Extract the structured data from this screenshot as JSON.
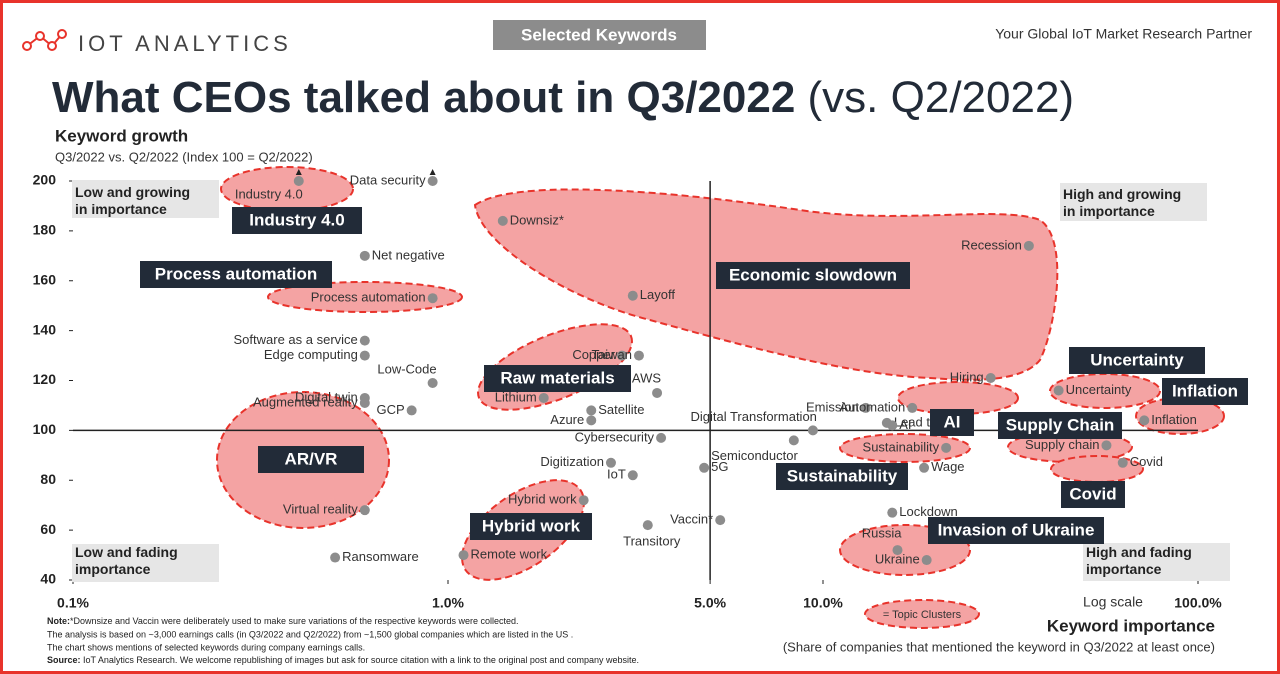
{
  "header": {
    "logo": "IOT ANALYTICS",
    "badge": "Selected Keywords",
    "tagline": "Your Global IoT Market Research Partner"
  },
  "chart_data": {
    "type": "scatter",
    "title": "What CEOs talked about in Q3/2022",
    "title_suffix": "(vs. Q2/2022)",
    "y_title": "Keyword growth",
    "y_subtitle": "Q3/2022 vs. Q2/2022 (Index 100 = Q2/2022)",
    "x_title": "Keyword importance",
    "x_subtitle": "(Share of companies that mentioned the keyword in Q3/2022 at least once)",
    "x_scale_label": "Log scale",
    "log_x": true,
    "xlim": [
      0.1,
      100
    ],
    "ylim": [
      40,
      200
    ],
    "xticks": [
      {
        "value": 0.1,
        "label": "0.1%"
      },
      {
        "value": 1,
        "label": "1.0%"
      },
      {
        "value": 5,
        "label": "5.0%"
      },
      {
        "value": 10,
        "label": "10.0%"
      },
      {
        "value": 100,
        "label": "100.0%"
      }
    ],
    "yticks": [
      40,
      60,
      80,
      100,
      120,
      140,
      160,
      180,
      200
    ],
    "reference_lines": {
      "x": 5,
      "y": 100
    },
    "color": "#8c8c8c",
    "cluster_color": "#f4a3a3",
    "quadrants": [
      "Low and growing in importance",
      "High and growing in importance",
      "Low and fading importance",
      "High and fading importance"
    ],
    "points": [
      {
        "label": "Industry 4.0",
        "x": 0.4,
        "y": 200
      },
      {
        "label": "Data security",
        "x": 0.91,
        "y": 200
      },
      {
        "label": "Downsiz*",
        "x": 1.4,
        "y": 184
      },
      {
        "label": "Net negative",
        "x": 0.6,
        "y": 170
      },
      {
        "label": "Process automation",
        "x": 0.91,
        "y": 153
      },
      {
        "label": "Layoff",
        "x": 3.11,
        "y": 154
      },
      {
        "label": "Recession",
        "x": 35.4,
        "y": 174
      },
      {
        "label": "Software as a service",
        "x": 0.6,
        "y": 136
      },
      {
        "label": "Edge computing",
        "x": 0.6,
        "y": 130
      },
      {
        "label": "Copper",
        "x": 2.91,
        "y": 130
      },
      {
        "label": "Taiwan",
        "x": 3.23,
        "y": 130
      },
      {
        "label": "Digital twin",
        "x": 0.6,
        "y": 113
      },
      {
        "label": "Low-Code",
        "x": 0.91,
        "y": 119
      },
      {
        "label": "Lithium",
        "x": 1.8,
        "y": 113
      },
      {
        "label": "AWS",
        "x": 3.61,
        "y": 115
      },
      {
        "label": "Augmented reality",
        "x": 0.6,
        "y": 111
      },
      {
        "label": "GCP",
        "x": 0.8,
        "y": 108
      },
      {
        "label": "Satellite",
        "x": 2.41,
        "y": 108
      },
      {
        "label": "Azure",
        "x": 2.41,
        "y": 104
      },
      {
        "label": "Digital Transformation",
        "x": 9.4,
        "y": 100
      },
      {
        "label": "Emission",
        "x": 13,
        "y": 109
      },
      {
        "label": "Hiring",
        "x": 28,
        "y": 121
      },
      {
        "label": "Automation",
        "x": 17.3,
        "y": 109
      },
      {
        "label": "Lead time",
        "x": 14.8,
        "y": 103
      },
      {
        "label": "AI",
        "x": 15.3,
        "y": 102
      },
      {
        "label": "Uncertainty",
        "x": 42.5,
        "y": 116
      },
      {
        "label": "Inflation",
        "x": 71.9,
        "y": 104
      },
      {
        "label": "Cybersecurity",
        "x": 3.7,
        "y": 97
      },
      {
        "label": "Semiconductor",
        "x": 8.36,
        "y": 96
      },
      {
        "label": "Sustainability",
        "x": 21.3,
        "y": 93
      },
      {
        "label": "Supply chain",
        "x": 57,
        "y": 94
      },
      {
        "label": "Digitization",
        "x": 2.72,
        "y": 87
      },
      {
        "label": "IoT",
        "x": 3.11,
        "y": 82
      },
      {
        "label": "5G",
        "x": 4.82,
        "y": 85
      },
      {
        "label": "Wage",
        "x": 18.6,
        "y": 85
      },
      {
        "label": "Covid",
        "x": 63,
        "y": 87
      },
      {
        "label": "Hybrid work",
        "x": 2.3,
        "y": 72
      },
      {
        "label": "Virtual reality",
        "x": 0.6,
        "y": 68
      },
      {
        "label": "Transitory",
        "x": 3.41,
        "y": 62
      },
      {
        "label": "Vaccin*",
        "x": 5.32,
        "y": 64
      },
      {
        "label": "Lockdown",
        "x": 15.3,
        "y": 67
      },
      {
        "label": "Russia",
        "x": 15.8,
        "y": 52
      },
      {
        "label": "Ukraine",
        "x": 18.9,
        "y": 48
      },
      {
        "label": "Ransomware",
        "x": 0.5,
        "y": 49
      },
      {
        "label": "Remote work",
        "x": 1.1,
        "y": 50
      }
    ],
    "clusters": [
      "Industry 4.0",
      "Process automation",
      "Economic slowdown",
      "Raw materials",
      "AR/VR",
      "Hybrid work",
      "Uncertainty",
      "Inflation",
      "AI",
      "Supply Chain",
      "Sustainability",
      "Covid",
      "Invasion of Ukraine"
    ],
    "legend": "= Topic Clusters",
    "note_label": "Note:",
    "notes": [
      "*Downsize and Vaccin were deliberately used to make sure variations of the respective keywords were collected.",
      "The analysis is based on ~3,000 earnings calls (in Q3/2022 and Q2/2022) from ~1,500 global companies which are listed in the US .",
      "The chart shows mentions of selected keywords during company earnings calls."
    ],
    "source_label": "Source:",
    "source": "IoT Analytics Research. We welcome republishing of images but ask for source citation with a link to the original post and company website."
  }
}
